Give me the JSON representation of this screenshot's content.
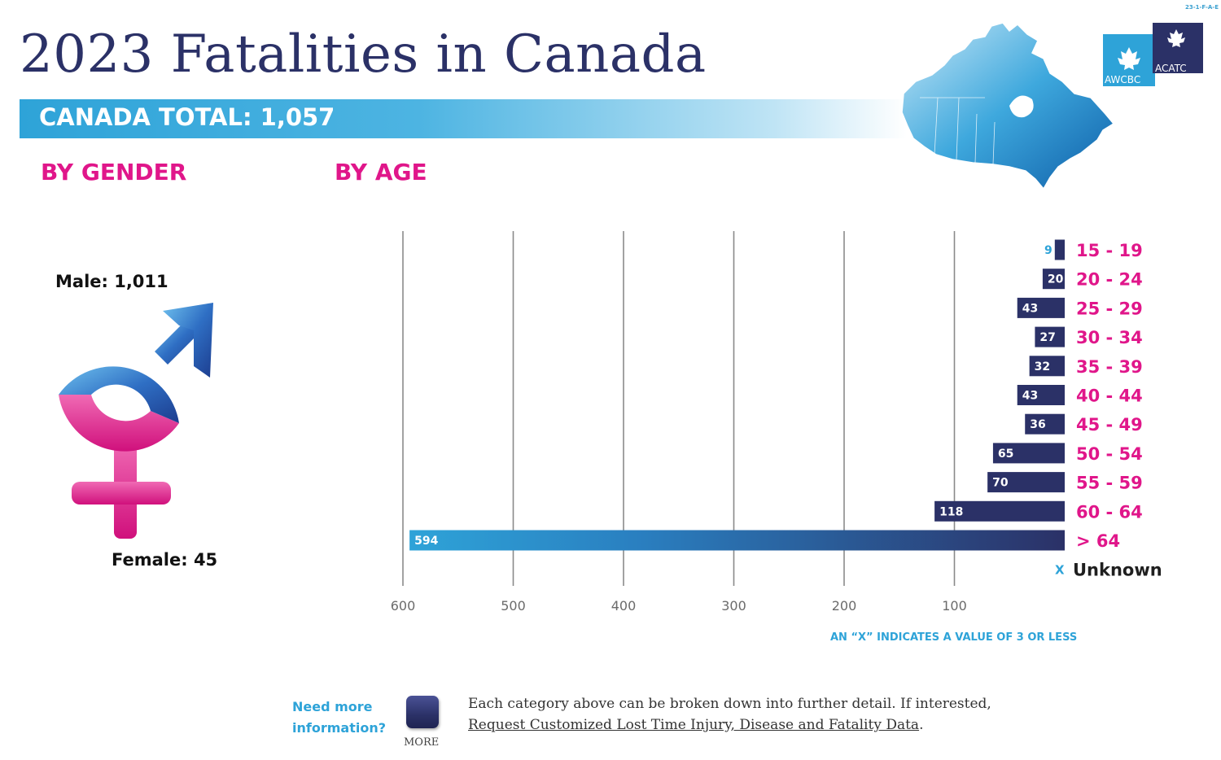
{
  "header": {
    "doc_code": "23-1-F-A-E",
    "title": "2023 Fatalities in Canada",
    "total_label": "CANADA TOTAL: 1,057",
    "logo_left": "AWCBC",
    "logo_right": "ACATC"
  },
  "sections": {
    "gender": "BY GENDER",
    "age": "BY AGE"
  },
  "gender": {
    "male_label": "Male: 1,011",
    "female_label": "Female: 45"
  },
  "colors": {
    "navy": "#2b3167",
    "cyan": "#2ea3d8",
    "magenta": "#e0168a"
  },
  "chart_data": {
    "type": "bar",
    "orientation": "horizontal",
    "x_direction": "reversed",
    "categories": [
      "15 - 19",
      "20 - 24",
      "25 - 29",
      "30 - 34",
      "35 - 39",
      "40 - 44",
      "45 - 49",
      "50 - 54",
      "55 - 59",
      "60 - 64",
      "> 64"
    ],
    "values": [
      9,
      20,
      43,
      27,
      32,
      43,
      36,
      65,
      70,
      118,
      594
    ],
    "unknown": {
      "marker": "X",
      "label": "Unknown"
    },
    "xticks": [
      600,
      500,
      400,
      300,
      200,
      100
    ],
    "xlim": [
      0,
      600
    ],
    "grid": true,
    "note": "AN “X” INDICATES A VALUE OF 3 OR LESS"
  },
  "footer": {
    "need_more_line1": "Need more",
    "need_more_line2": "information?",
    "more_label": "MORE",
    "info_line1": "Each category above can be broken down into further detail. If interested,",
    "info_link": "Request Customized Lost Time Injury, Disease and Fatality Data",
    "info_end": "."
  }
}
